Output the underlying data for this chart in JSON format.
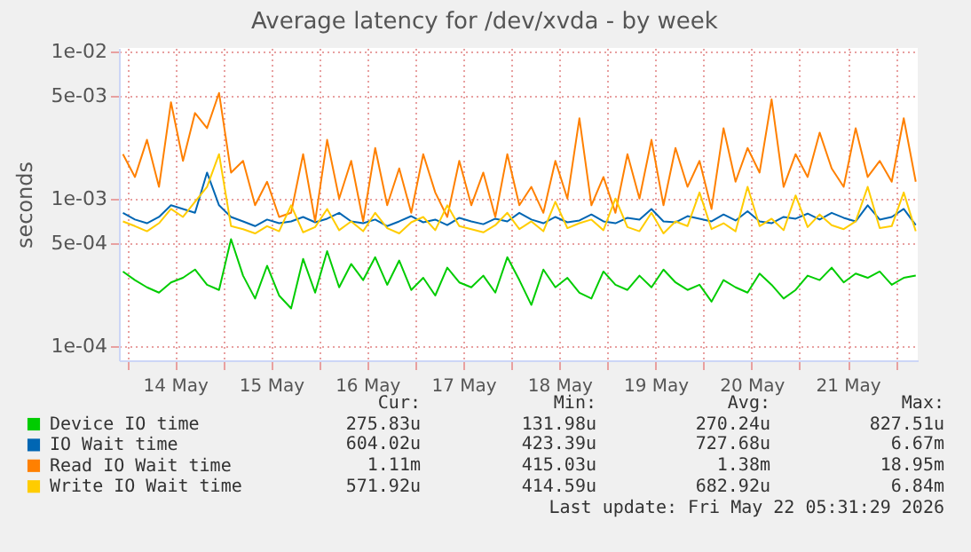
{
  "chart_data": {
    "type": "line",
    "title": "Average latency for /dev/xvda - by week",
    "ylabel": "seconds",
    "x": [
      "2026-05-13T23:00",
      "2026-05-14T02:00",
      "2026-05-14T05:00",
      "2026-05-14T08:00",
      "2026-05-14T11:00",
      "2026-05-14T14:00",
      "2026-05-14T17:00",
      "2026-05-14T20:00",
      "2026-05-14T23:00",
      "2026-05-15T02:00",
      "2026-05-15T05:00",
      "2026-05-15T08:00",
      "2026-05-15T11:00",
      "2026-05-15T14:00",
      "2026-05-15T17:00",
      "2026-05-15T20:00",
      "2026-05-15T23:00",
      "2026-05-16T02:00",
      "2026-05-16T05:00",
      "2026-05-16T08:00",
      "2026-05-16T11:00",
      "2026-05-16T14:00",
      "2026-05-16T17:00",
      "2026-05-16T20:00",
      "2026-05-16T23:00",
      "2026-05-17T02:00",
      "2026-05-17T05:00",
      "2026-05-17T08:00",
      "2026-05-17T11:00",
      "2026-05-17T14:00",
      "2026-05-17T17:00",
      "2026-05-17T20:00",
      "2026-05-17T23:00",
      "2026-05-18T02:00",
      "2026-05-18T05:00",
      "2026-05-18T08:00",
      "2026-05-18T11:00",
      "2026-05-18T14:00",
      "2026-05-18T17:00",
      "2026-05-18T20:00",
      "2026-05-18T23:00",
      "2026-05-19T02:00",
      "2026-05-19T05:00",
      "2026-05-19T08:00",
      "2026-05-19T11:00",
      "2026-05-19T14:00",
      "2026-05-19T17:00",
      "2026-05-19T20:00",
      "2026-05-19T23:00",
      "2026-05-20T02:00",
      "2026-05-20T05:00",
      "2026-05-20T08:00",
      "2026-05-20T11:00",
      "2026-05-20T14:00",
      "2026-05-20T17:00",
      "2026-05-20T20:00",
      "2026-05-20T23:00",
      "2026-05-21T02:00",
      "2026-05-21T05:00",
      "2026-05-21T08:00",
      "2026-05-21T11:00",
      "2026-05-21T14:00",
      "2026-05-21T17:00",
      "2026-05-21T20:00",
      "2026-05-21T23:00",
      "2026-05-22T02:00",
      "2026-05-22T05:00"
    ],
    "series": [
      {
        "name": "Device IO time",
        "color": "#00cc00",
        "values": [
          0.00032,
          0.00028,
          0.00025,
          0.00023,
          0.00027,
          0.00029,
          0.00033,
          0.00026,
          0.00024,
          0.00053,
          0.0003,
          0.00021,
          0.00035,
          0.00022,
          0.00018,
          0.00039,
          0.00023,
          0.00044,
          0.00025,
          0.00036,
          0.00028,
          0.0004,
          0.00026,
          0.00038,
          0.00024,
          0.00029,
          0.00022,
          0.00034,
          0.00027,
          0.00025,
          0.0003,
          0.00023,
          0.0004,
          0.00028,
          0.00019,
          0.00033,
          0.00025,
          0.00029,
          0.00023,
          0.00021,
          0.00032,
          0.00026,
          0.00024,
          0.0003,
          0.00025,
          0.00033,
          0.00027,
          0.00024,
          0.00026,
          0.0002,
          0.00028,
          0.00025,
          0.00023,
          0.00031,
          0.00026,
          0.00021,
          0.00024,
          0.0003,
          0.00028,
          0.00034,
          0.00027,
          0.00031,
          0.00029,
          0.00032,
          0.00026,
          0.00029,
          0.0003
        ]
      },
      {
        "name": "IO Wait time",
        "color": "#0066b3",
        "values": [
          0.0008,
          0.00072,
          0.00068,
          0.00075,
          0.0009,
          0.00085,
          0.0008,
          0.0015,
          0.0009,
          0.00075,
          0.0007,
          0.00065,
          0.00072,
          0.00068,
          0.0007,
          0.00075,
          0.00069,
          0.00073,
          0.0008,
          0.0007,
          0.00068,
          0.00072,
          0.00065,
          0.0007,
          0.00076,
          0.00069,
          0.00072,
          0.00066,
          0.00074,
          0.0007,
          0.00067,
          0.00073,
          0.0007,
          0.0008,
          0.00072,
          0.00068,
          0.00075,
          0.00069,
          0.00071,
          0.00078,
          0.0007,
          0.00068,
          0.00074,
          0.00072,
          0.00085,
          0.0007,
          0.00069,
          0.00076,
          0.00073,
          0.0007,
          0.00078,
          0.00071,
          0.00082,
          0.0007,
          0.00068,
          0.00075,
          0.00073,
          0.00079,
          0.00072,
          0.0008,
          0.00074,
          0.0007,
          0.0009,
          0.00072,
          0.00075,
          0.00085,
          0.00066
        ]
      },
      {
        "name": "Read IO Wait time",
        "color": "#ff8000",
        "values": [
          0.002,
          0.0014,
          0.0025,
          0.0012,
          0.0045,
          0.0018,
          0.0038,
          0.003,
          0.0052,
          0.0015,
          0.0018,
          0.0009,
          0.0013,
          0.00075,
          0.0008,
          0.002,
          0.0007,
          0.0025,
          0.001,
          0.0018,
          0.0007,
          0.0022,
          0.0009,
          0.0016,
          0.0008,
          0.002,
          0.0011,
          0.00075,
          0.0018,
          0.0009,
          0.0015,
          0.00075,
          0.002,
          0.0009,
          0.0012,
          0.0008,
          0.0018,
          0.001,
          0.0035,
          0.0009,
          0.0014,
          0.0008,
          0.002,
          0.001,
          0.0025,
          0.0009,
          0.0022,
          0.0012,
          0.0018,
          0.00085,
          0.003,
          0.0013,
          0.0022,
          0.0015,
          0.0047,
          0.0012,
          0.002,
          0.0014,
          0.0028,
          0.0016,
          0.0012,
          0.003,
          0.0014,
          0.0018,
          0.0013,
          0.0035,
          0.0013
        ]
      },
      {
        "name": "Write IO Wait time",
        "color": "#ffcc00",
        "values": [
          0.0007,
          0.00065,
          0.0006,
          0.00068,
          0.00085,
          0.00075,
          0.00095,
          0.0012,
          0.002,
          0.00065,
          0.00062,
          0.00058,
          0.00065,
          0.0006,
          0.0009,
          0.00059,
          0.00064,
          0.00085,
          0.00061,
          0.0007,
          0.0006,
          0.0008,
          0.00063,
          0.00058,
          0.00069,
          0.00075,
          0.00061,
          0.0009,
          0.00065,
          0.00062,
          0.00059,
          0.00066,
          0.0008,
          0.00062,
          0.0007,
          0.0006,
          0.00095,
          0.00063,
          0.00068,
          0.00072,
          0.00061,
          0.001,
          0.00064,
          0.0006,
          0.0008,
          0.00058,
          0.0007,
          0.00065,
          0.0011,
          0.00062,
          0.00068,
          0.0006,
          0.0012,
          0.00065,
          0.00073,
          0.00061,
          0.00105,
          0.00064,
          0.00078,
          0.00066,
          0.00062,
          0.0007,
          0.0012,
          0.00063,
          0.00065,
          0.0011,
          0.0006
        ]
      }
    ],
    "xlim": [
      "2026-05-13T22:00",
      "2026-05-22T05:30"
    ],
    "xticks": [
      {
        "value": "2026-05-14T00:00",
        "label": null
      },
      {
        "value": "2026-05-14T12:00",
        "label": "14 May"
      },
      {
        "value": "2026-05-15T00:00",
        "label": null
      },
      {
        "value": "2026-05-15T12:00",
        "label": "15 May"
      },
      {
        "value": "2026-05-16T00:00",
        "label": null
      },
      {
        "value": "2026-05-16T12:00",
        "label": "16 May"
      },
      {
        "value": "2026-05-17T00:00",
        "label": null
      },
      {
        "value": "2026-05-17T12:00",
        "label": "17 May"
      },
      {
        "value": "2026-05-18T00:00",
        "label": null
      },
      {
        "value": "2026-05-18T12:00",
        "label": "18 May"
      },
      {
        "value": "2026-05-19T00:00",
        "label": null
      },
      {
        "value": "2026-05-19T12:00",
        "label": "19 May"
      },
      {
        "value": "2026-05-20T00:00",
        "label": null
      },
      {
        "value": "2026-05-20T12:00",
        "label": "20 May"
      },
      {
        "value": "2026-05-21T00:00",
        "label": null
      },
      {
        "value": "2026-05-21T12:00",
        "label": "21 May"
      },
      {
        "value": "2026-05-22T00:00",
        "label": null
      }
    ],
    "ylim": [
      8e-05,
      0.0105
    ],
    "yticks": [
      {
        "value": 0.0001,
        "label": "1e-04"
      },
      {
        "value": 0.0005,
        "label": "5e-04"
      },
      {
        "value": 0.001,
        "label": "1e-03"
      },
      {
        "value": 0.005,
        "label": "5e-03"
      },
      {
        "value": 0.01,
        "label": "1e-02"
      }
    ],
    "log": "y",
    "grid": true,
    "legend": "bottom",
    "annotations": [
      "Cur:",
      "Min:",
      "Avg:",
      "Max:",
      "275.83u",
      "131.98u",
      "270.24u",
      "827.51u",
      "604.02u",
      "423.39u",
      "727.68u",
      "6.67m",
      "1.11m",
      "415.03u",
      "1.38m",
      "18.95m",
      "571.92u",
      "414.59u",
      "682.92u",
      "6.84m",
      "Last update: Fri May 22 05:31:29 2026"
    ]
  }
}
